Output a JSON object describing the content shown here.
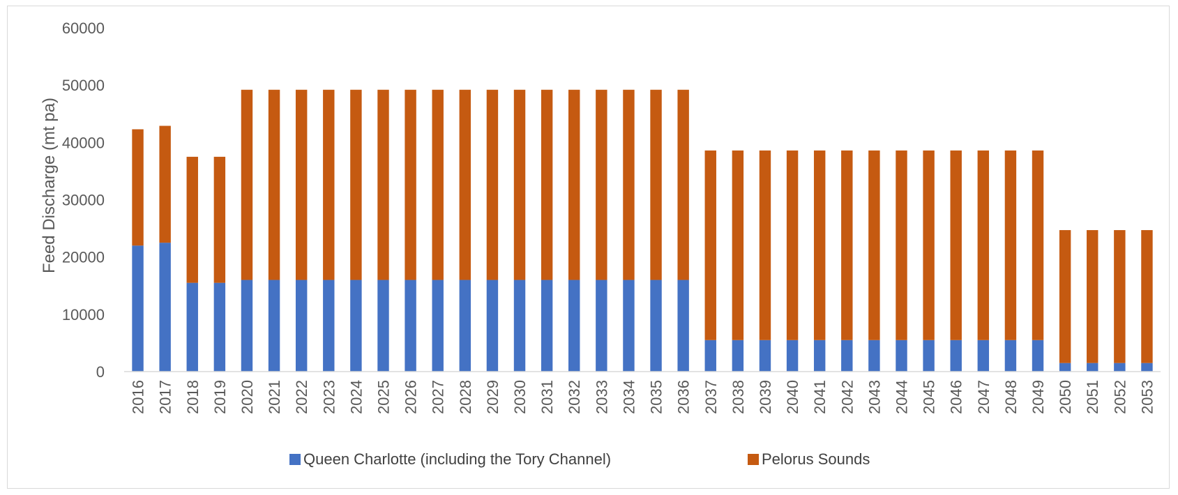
{
  "chart_data": {
    "type": "bar",
    "stacked": true,
    "title": "",
    "xlabel": "",
    "ylabel": "Feed Discharge (mt pa)",
    "ylim": [
      0,
      60000
    ],
    "yticks": [
      0,
      10000,
      20000,
      30000,
      40000,
      50000,
      60000
    ],
    "grid": false,
    "legend_position": "bottom",
    "categories": [
      "2016",
      "2017",
      "2018",
      "2019",
      "2020",
      "2021",
      "2022",
      "2023",
      "2024",
      "2025",
      "2026",
      "2027",
      "2028",
      "2029",
      "2030",
      "2031",
      "2032",
      "2033",
      "2034",
      "2035",
      "2036",
      "2037",
      "2038",
      "2039",
      "2040",
      "2041",
      "2042",
      "2043",
      "2044",
      "2045",
      "2046",
      "2047",
      "2048",
      "2049",
      "2050",
      "2051",
      "2052",
      "2053"
    ],
    "series": [
      {
        "name": "Queen Charlotte (including the Tory Channel)",
        "color": "#4472C4",
        "values": [
          22000,
          22500,
          15500,
          15500,
          16000,
          16000,
          16000,
          16000,
          16000,
          16000,
          16000,
          16000,
          16000,
          16000,
          16000,
          16000,
          16000,
          16000,
          16000,
          16000,
          16000,
          5500,
          5500,
          5500,
          5500,
          5500,
          5500,
          5500,
          5500,
          5500,
          5500,
          5500,
          5500,
          5500,
          1500,
          1500,
          1500,
          1500
        ]
      },
      {
        "name": "Pelorus Sounds",
        "color": "#C55A11",
        "values": [
          20300,
          20400,
          22000,
          22000,
          33200,
          33200,
          33200,
          33200,
          33200,
          33200,
          33200,
          33200,
          33200,
          33200,
          33200,
          33200,
          33200,
          33200,
          33200,
          33200,
          33200,
          33100,
          33100,
          33100,
          33100,
          33100,
          33100,
          33100,
          33100,
          33100,
          33100,
          33100,
          33100,
          33100,
          23200,
          23200,
          23200,
          23200
        ]
      }
    ]
  }
}
